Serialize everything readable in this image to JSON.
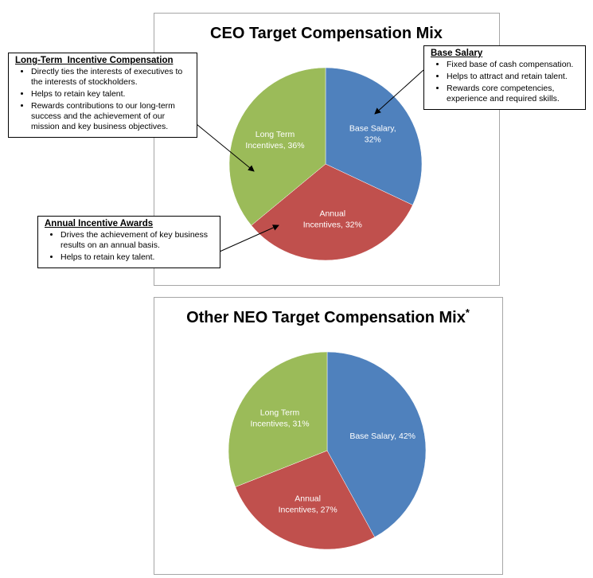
{
  "chart_data": [
    {
      "type": "pie",
      "title": "CEO Target Compensation Mix",
      "values": [
        32,
        32,
        36
      ],
      "value_labels": [
        "Base Salary,\n32%",
        "Annual\nIncentives, 32%",
        "Long Term\nIncentives, 36%"
      ],
      "colors": [
        "#4f81bd",
        "#c0504d",
        "#9bbb59"
      ],
      "annotations": [
        {
          "title": "Long-Term  Incentive Compensation",
          "bullets": [
            "Directly ties the interests of executives to the interests of stockholders.",
            "Helps to retain key talent.",
            "Rewards contributions to our long-term success and the achievement of our mission and key business objectives."
          ]
        },
        {
          "title": "Base Salary",
          "bullets": [
            "Fixed base of cash compensation.",
            "Helps to attract and retain talent.",
            "Rewards core competencies, experience and required skills."
          ]
        },
        {
          "title": "Annual Incentive Awards",
          "bullets": [
            "Drives the achievement of key business results on an annual basis.",
            "Helps to retain key talent."
          ]
        }
      ]
    },
    {
      "type": "pie",
      "title": "Other NEO Target Compensation Mix",
      "title_note": "*",
      "values": [
        42,
        27,
        31
      ],
      "value_labels": [
        "Base Salary, 42%",
        "Annual\nIncentives, 27%",
        "Long Term\nIncentives, 31%"
      ],
      "colors": [
        "#4f81bd",
        "#c0504d",
        "#9bbb59"
      ]
    }
  ]
}
